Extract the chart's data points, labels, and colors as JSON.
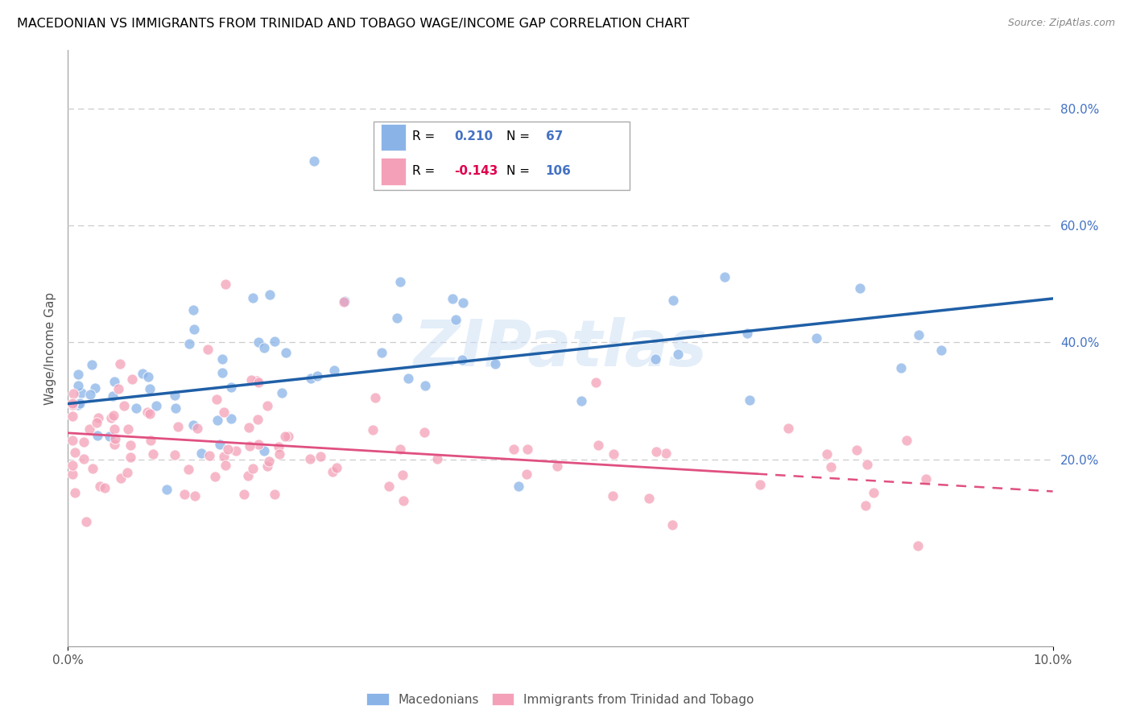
{
  "title": "MACEDONIAN VS IMMIGRANTS FROM TRINIDAD AND TOBAGO WAGE/INCOME GAP CORRELATION CHART",
  "source": "Source: ZipAtlas.com",
  "ylabel": "Wage/Income Gap",
  "xlim": [
    0.0,
    0.1
  ],
  "ylim": [
    -0.12,
    0.9
  ],
  "right_yticks": [
    0.2,
    0.4,
    0.6,
    0.8
  ],
  "right_yticklabels": [
    "20.0%",
    "40.0%",
    "60.0%",
    "80.0%"
  ],
  "xtick_positions": [
    0.0,
    0.1
  ],
  "xticklabels": [
    "0.0%",
    "10.0%"
  ],
  "blue_R": 0.21,
  "blue_N": 67,
  "pink_R": -0.143,
  "pink_N": 106,
  "blue_color": "#8ab4e8",
  "pink_color": "#f4a0b8",
  "blue_line_color": "#1f5fa6",
  "pink_line_color": "#e05080",
  "watermark": "ZIPatlas",
  "legend_label1": "Macedonians",
  "legend_label2": "Immigrants from Trinidad and Tobago",
  "blue_line_y0": 0.295,
  "blue_line_y1": 0.475,
  "pink_line_y0": 0.245,
  "pink_line_y1": 0.145,
  "grid_color": "#cccccc",
  "axis_color": "#999999",
  "tick_color": "#555555",
  "background_color": "#ffffff"
}
